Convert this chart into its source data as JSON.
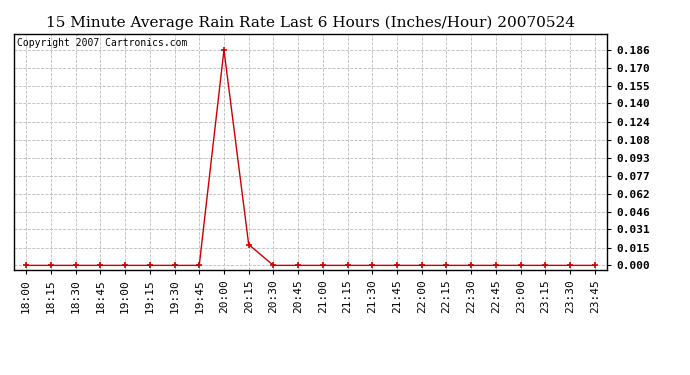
{
  "title": "15 Minute Average Rain Rate Last 6 Hours (Inches/Hour) 20070524",
  "copyright_text": "Copyright 2007 Cartronics.com",
  "line_color": "#cc0000",
  "background_color": "#ffffff",
  "plot_bg_color": "#ffffff",
  "grid_color": "#bbbbbb",
  "x_labels": [
    "18:00",
    "18:15",
    "18:30",
    "18:45",
    "19:00",
    "19:15",
    "19:30",
    "19:45",
    "20:00",
    "20:15",
    "20:30",
    "20:45",
    "21:00",
    "21:15",
    "21:30",
    "21:45",
    "22:00",
    "22:15",
    "22:30",
    "22:45",
    "23:00",
    "23:15",
    "23:30",
    "23:45"
  ],
  "y_values": [
    0.0,
    0.0,
    0.0,
    0.0,
    0.0,
    0.0,
    0.0,
    0.0,
    0.186,
    0.018,
    0.0,
    0.0,
    0.0,
    0.0,
    0.0,
    0.0,
    0.0,
    0.0,
    0.0,
    0.0,
    0.0,
    0.0,
    0.0,
    0.0
  ],
  "yticks": [
    0.0,
    0.015,
    0.031,
    0.046,
    0.062,
    0.077,
    0.093,
    0.108,
    0.124,
    0.14,
    0.155,
    0.17,
    0.186
  ],
  "ylim": [
    -0.004,
    0.2
  ],
  "title_fontsize": 11,
  "tick_fontsize": 8,
  "copyright_fontsize": 7,
  "title_font": "DejaVu Sans",
  "ytick_fontweight": "bold"
}
